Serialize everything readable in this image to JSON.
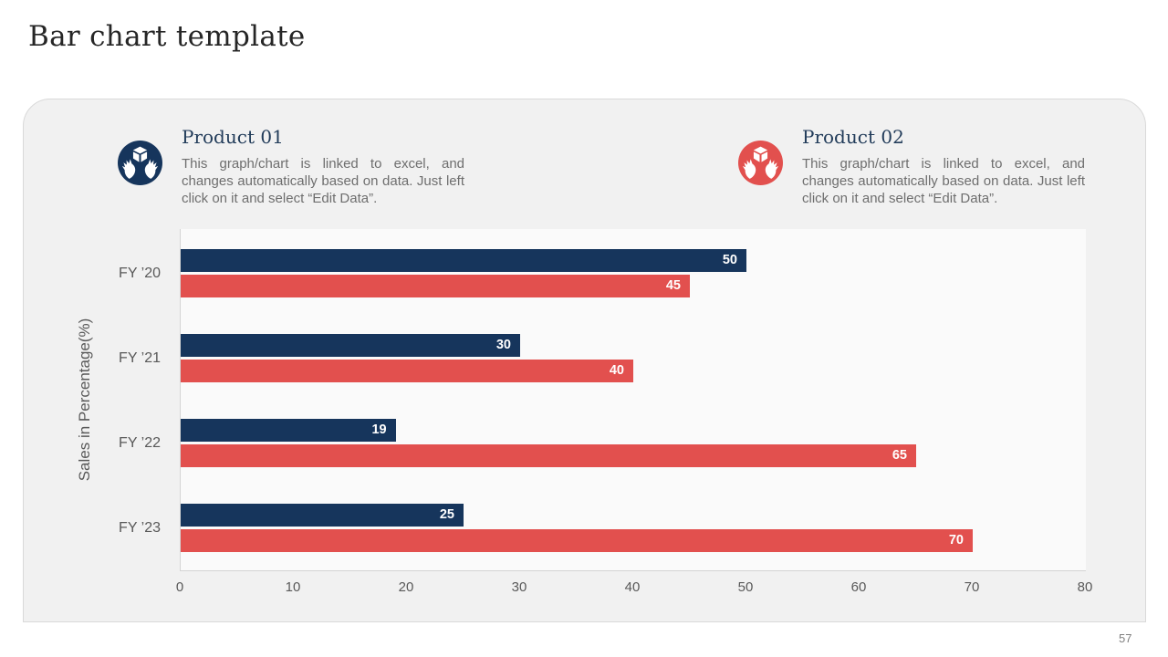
{
  "page": {
    "title": "Bar chart template",
    "page_number": "57"
  },
  "panel": {
    "legend": [
      {
        "title": "Product 01",
        "description": "This graph/chart is linked to excel, and changes automatically based on data. Just left click on it and select “Edit Data”.",
        "icon": "hands-holding-box-icon",
        "color": "#16355c"
      },
      {
        "title": "Product 02",
        "description": "This graph/chart is linked to excel, and changes automatically based on data. Just left click on it and select “Edit Data”.",
        "icon": "hands-holding-box-icon",
        "color": "#e2504e"
      }
    ]
  },
  "chart_data": {
    "type": "bar",
    "orientation": "horizontal",
    "title": "",
    "categories": [
      "FY ’20",
      "FY ’21",
      "FY ’22",
      "FY ’23"
    ],
    "series": [
      {
        "name": "Product 01",
        "color": "#16355c",
        "values": [
          50,
          30,
          19,
          25
        ]
      },
      {
        "name": "Product 02",
        "color": "#e2504e",
        "values": [
          45,
          40,
          65,
          70
        ]
      }
    ],
    "xlabel": "",
    "ylabel": "Sales in Percentage(%)",
    "xlim": [
      0,
      80
    ],
    "xticks": [
      0,
      10,
      20,
      30,
      40,
      50,
      60,
      70,
      80
    ],
    "grid": false,
    "value_labels": "inside-end",
    "legend_position": "none"
  }
}
